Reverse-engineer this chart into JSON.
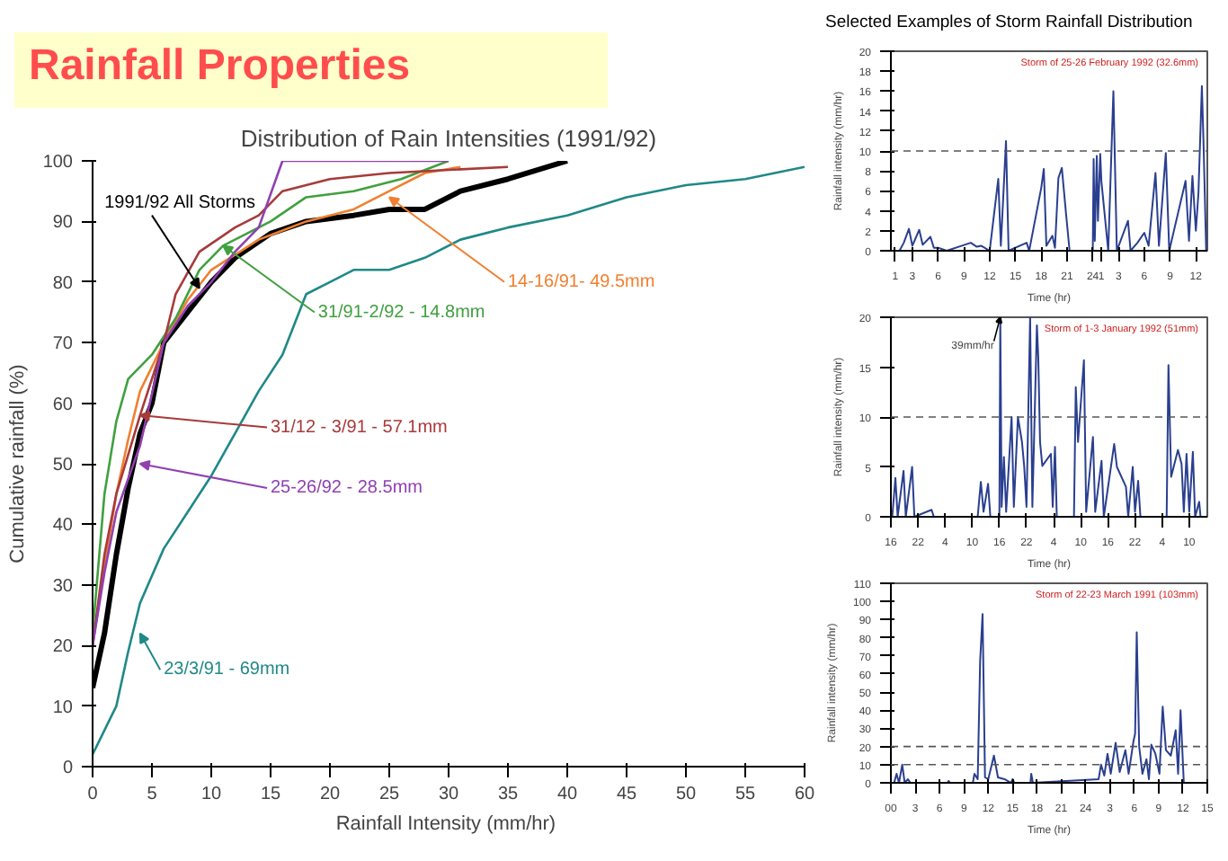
{
  "chart_data": [
    {
      "type": "line",
      "title": "Rainfall Properties",
      "subtitle": "Distribution of Rain Intensities (1991/92)",
      "xlabel": "Rainfall Intensity  (mm/hr)",
      "ylabel": "Cumulative rainfall (%)",
      "xlim": [
        0,
        60
      ],
      "xticks": [
        0,
        5,
        10,
        15,
        20,
        25,
        30,
        35,
        40,
        45,
        50,
        55,
        60
      ],
      "ylim": [
        0,
        100
      ],
      "yticks": [
        0,
        10,
        20,
        30,
        40,
        50,
        60,
        70,
        80,
        90,
        100
      ],
      "series": [
        {
          "color": "#000000",
          "x": [
            0,
            1,
            2,
            3,
            4,
            5,
            6,
            8,
            10,
            12,
            15,
            18,
            22,
            25,
            28,
            31,
            35,
            40
          ],
          "values": [
            13,
            22,
            35,
            46,
            55,
            60,
            70,
            75,
            80,
            84,
            88,
            90,
            91,
            92,
            92,
            95,
            97,
            100
          ]
        },
        {
          "color": "#f08030",
          "x": [
            0,
            1,
            2,
            3,
            4,
            6,
            8,
            10,
            14,
            18,
            22,
            25,
            28,
            31
          ],
          "values": [
            20,
            33,
            45,
            54,
            62,
            70,
            77,
            82,
            87,
            90,
            92,
            95,
            98,
            99
          ]
        },
        {
          "color": "#40a040",
          "x": [
            0,
            1,
            2,
            3,
            5,
            7,
            9,
            11,
            15,
            18,
            22,
            26,
            30
          ],
          "values": [
            22,
            45,
            57,
            64,
            68,
            74,
            82,
            86,
            90,
            94,
            95,
            97,
            100
          ]
        },
        {
          "color": "#a83a3a",
          "x": [
            0,
            1,
            2,
            4,
            6,
            7,
            9,
            12,
            14,
            16,
            20,
            25,
            35
          ],
          "values": [
            20,
            35,
            45,
            58,
            70,
            78,
            85,
            89,
            91,
            95,
            97,
            98,
            99
          ]
        },
        {
          "color": "#9040b0",
          "x": [
            0,
            1,
            2,
            4,
            6,
            8,
            10,
            12,
            14,
            16,
            25,
            30
          ],
          "values": [
            20,
            32,
            42,
            53,
            70,
            76,
            80,
            85,
            89,
            100,
            100,
            100
          ]
        },
        {
          "color": "#208888",
          "x": [
            0,
            2,
            3,
            4,
            6,
            8,
            10,
            12,
            14,
            16,
            18,
            20,
            22,
            25,
            28,
            31,
            35,
            40,
            45,
            50,
            55,
            60
          ],
          "values": [
            2,
            10,
            19,
            27,
            36,
            42,
            48,
            55,
            62,
            68,
            78,
            80,
            82,
            82,
            84,
            87,
            89,
            91,
            94,
            96,
            97,
            99
          ]
        }
      ],
      "annotations": [
        {
          "text": "1991/92 All Storms",
          "x": 9,
          "y": 79
        },
        {
          "text": "14-16/91- 49.5mm",
          "x": 25,
          "y": 94
        },
        {
          "text": "31/91-2/92 - 14.8mm",
          "x": 11,
          "y": 86
        },
        {
          "text": "31/12 - 3/91 - 57.1mm",
          "x": 4,
          "y": 58
        },
        {
          "text": "25-26/92 - 28.5mm",
          "x": 4,
          "y": 50
        },
        {
          "text": "23/3/91 - 69mm",
          "x": 4,
          "y": 22
        }
      ]
    },
    {
      "type": "line",
      "title": "Selected Examples of Storm Rainfall Distribution",
      "xlabel": "Time (hr)",
      "ylabel": "Rainfall intensity (mm/hr)",
      "xlim": [
        "1992-02-25T00:30",
        "1992-02-26T13:20"
      ],
      "xticks": [
        {
          "value": "1992-02-25T01:00",
          "label": "1"
        },
        {
          "value": "1992-02-25T03:00",
          "label": "3"
        },
        {
          "value": "1992-02-25T06:00",
          "label": "6"
        },
        {
          "value": "1992-02-25T09:00",
          "label": "9"
        },
        {
          "value": "1992-02-25T12:00",
          "label": "12"
        },
        {
          "value": "1992-02-25T15:00",
          "label": "15"
        },
        {
          "value": "1992-02-25T18:00",
          "label": "18"
        },
        {
          "value": "1992-02-25T21:00",
          "label": "21"
        },
        {
          "value": "1992-02-26T00:00",
          "label": "24"
        },
        {
          "value": "1992-02-26T01:00",
          "label": "1"
        },
        {
          "value": "1992-02-26T03:00",
          "label": "3"
        },
        {
          "value": "1992-02-26T06:00",
          "label": "6"
        },
        {
          "value": "1992-02-26T09:00",
          "label": "9"
        },
        {
          "value": "1992-02-26T12:00",
          "label": "12"
        }
      ],
      "ylim": [
        0,
        20
      ],
      "yticks": [
        0,
        2,
        4,
        6,
        8,
        10,
        12,
        14,
        16,
        18,
        20
      ],
      "ref_lines": [
        {
          "axis": "y",
          "value": 10,
          "line_style": "dashed"
        }
      ],
      "annotations": [
        "Storm of 25-26 February 1992 (32.6mm)"
      ],
      "series": [
        {
          "color": "#2a3f8f",
          "x": [
            "1992-02-25T01:30",
            "1992-02-25T02:00",
            "1992-02-25T02:36",
            "1992-02-25T03:00",
            "1992-02-25T03:48",
            "1992-02-25T04:12",
            "1992-02-25T05:06",
            "1992-02-25T05:30",
            "1992-02-25T06:00",
            "1992-02-25T07:00",
            "1992-02-25T09:48",
            "1992-02-25T10:30",
            "1992-02-25T11:00",
            "1992-02-25T12:00",
            "1992-02-25T13:00",
            "1992-02-25T13:18",
            "1992-02-25T13:54",
            "1992-02-25T14:12",
            "1992-02-25T16:18",
            "1992-02-25T16:36",
            "1992-02-25T18:00",
            "1992-02-25T18:18",
            "1992-02-25T18:36",
            "1992-02-25T19:18",
            "1992-02-25T19:36",
            "1992-02-25T20:00",
            "1992-02-25T20:24",
            "1992-02-25T20:54",
            "1992-02-25T21:18",
            "1992-02-26T00:00",
            "1992-02-26T00:06",
            "1992-02-26T00:14",
            "1992-02-26T00:28",
            "1992-02-26T00:36",
            "1992-02-26T00:52",
            "1992-02-26T01:00",
            "1992-02-26T01:48",
            "1992-02-26T02:24",
            "1992-02-26T02:48",
            "1992-02-26T04:06",
            "1992-02-26T04:24",
            "1992-02-26T05:12",
            "1992-02-26T06:00",
            "1992-02-26T06:30",
            "1992-02-26T07:18",
            "1992-02-26T07:42",
            "1992-02-26T08:30",
            "1992-02-26T08:54",
            "1992-02-26T10:48",
            "1992-02-26T11:12",
            "1992-02-26T11:36",
            "1992-02-26T12:00",
            "1992-02-26T12:18",
            "1992-02-26T12:42",
            "1992-02-26T12:54",
            "1992-02-26T13:12"
          ],
          "values": [
            0,
            0.8,
            2.2,
            0.5,
            2.1,
            0.6,
            1.4,
            0.3,
            0.3,
            0,
            0.8,
            0.4,
            0.5,
            0,
            7.2,
            0.5,
            11,
            0,
            0.8,
            0,
            6.3,
            8.2,
            0.5,
            1.5,
            0.3,
            7.3,
            8.3,
            3.6,
            0,
            0,
            9.2,
            1,
            9.5,
            3,
            9.7,
            7,
            0,
            16,
            0,
            3,
            0,
            0.8,
            1.8,
            0.5,
            7.8,
            0.5,
            9.8,
            0,
            7,
            1,
            7.5,
            2,
            5.8,
            16.5,
            10.5,
            0
          ]
        }
      ]
    },
    {
      "type": "line",
      "xlabel": "Time (hr)",
      "ylabel": "Rainfall intensity (mm/hr)",
      "xlim": [
        "1992-01-01T16:00",
        "1992-01-04T14:00"
      ],
      "xticks": [
        {
          "value": "1992-01-01T16:00",
          "label": "16"
        },
        {
          "value": "1992-01-01T22:00",
          "label": "22"
        },
        {
          "value": "1992-01-02T04:00",
          "label": "4"
        },
        {
          "value": "1992-01-02T10:00",
          "label": "10"
        },
        {
          "value": "1992-01-02T16:00",
          "label": "16"
        },
        {
          "value": "1992-01-02T22:00",
          "label": "22"
        },
        {
          "value": "1992-01-03T04:00",
          "label": "4"
        },
        {
          "value": "1992-01-03T10:00",
          "label": "10"
        },
        {
          "value": "1992-01-03T16:00",
          "label": "16"
        },
        {
          "value": "1992-01-03T22:00",
          "label": "22"
        },
        {
          "value": "1992-01-04T04:00",
          "label": "4"
        },
        {
          "value": "1992-01-04T10:00",
          "label": "10"
        }
      ],
      "ylim": [
        0,
        20
      ],
      "yticks": [
        0,
        5,
        10,
        15,
        20
      ],
      "ref_lines": [
        {
          "axis": "y",
          "value": 10,
          "line_style": "dashed"
        }
      ],
      "annotations": [
        "Storm of 1-3 January 1992 (51mm)",
        {
          "text": "39mm/hr",
          "x": "1992-01-02T16:12",
          "y": 20
        }
      ],
      "series": [
        {
          "color": "#2a3f8f",
          "x": [
            "1992-01-01T16:18",
            "1992-01-01T17:00",
            "1992-01-01T17:30",
            "1992-01-01T18:48",
            "1992-01-01T19:18",
            "1992-01-01T20:42",
            "1992-01-01T21:12",
            "1992-01-02T01:00",
            "1992-01-02T01:30",
            "1992-01-02T11:12",
            "1992-01-02T11:54",
            "1992-01-02T12:30",
            "1992-01-02T13:30",
            "1992-01-02T14:00",
            "1992-01-02T16:00",
            "1992-01-02T16:12",
            "1992-01-02T16:30",
            "1992-01-02T17:00",
            "1992-01-02T17:30",
            "1992-01-02T18:42",
            "1992-01-02T19:12",
            "1992-01-02T20:06",
            "1992-01-02T21:00",
            "1992-01-02T21:30",
            "1992-01-02T22:00",
            "1992-01-02T22:48",
            "1992-01-02T23:18",
            "1992-01-03T00:18",
            "1992-01-03T00:36",
            "1992-01-03T01:00",
            "1992-01-03T01:30",
            "1992-01-03T03:24",
            "1992-01-03T03:48",
            "1992-01-03T04:18",
            "1992-01-03T04:42",
            "1992-01-03T08:30",
            "1992-01-03T08:54",
            "1992-01-03T09:24",
            "1992-01-03T10:42",
            "1992-01-03T11:12",
            "1992-01-03T12:42",
            "1992-01-03T13:12",
            "1992-01-03T14:36",
            "1992-01-03T15:06",
            "1992-01-03T17:24",
            "1992-01-03T18:00",
            "1992-01-03T20:00",
            "1992-01-03T20:30",
            "1992-01-03T21:30",
            "1992-01-03T22:00",
            "1992-01-03T22:42",
            "1992-01-03T23:12",
            "1992-01-04T05:00",
            "1992-01-04T05:24",
            "1992-01-04T06:00",
            "1992-01-04T07:30",
            "1992-01-04T08:18",
            "1992-01-04T08:48",
            "1992-01-04T09:24",
            "1992-01-04T10:00",
            "1992-01-04T10:48",
            "1992-01-04T11:18",
            "1992-01-04T12:12",
            "1992-01-04T12:30"
          ],
          "values": [
            0,
            3.9,
            0,
            4.6,
            0,
            5,
            0,
            0.7,
            0,
            0,
            3.5,
            0.5,
            3.3,
            0,
            0,
            20,
            1,
            6,
            0.5,
            10,
            1,
            10,
            7.5,
            5,
            1,
            20,
            1,
            19.2,
            16,
            7.5,
            5.1,
            6.3,
            1,
            7,
            0,
            0,
            13,
            7.5,
            15.7,
            0.5,
            8,
            0.5,
            5.6,
            0,
            7.3,
            5,
            3,
            0,
            5,
            0.5,
            3.6,
            0,
            0,
            15.2,
            4,
            6.7,
            5.3,
            0.5,
            6.3,
            0.5,
            6.5,
            0,
            1.5,
            0
          ]
        }
      ]
    },
    {
      "type": "line",
      "xlabel": "Time (hr)",
      "ylabel": "Rainfall intensity (mm/hr)",
      "xlim": [
        "1991-03-22T00:00",
        "1991-03-23T15:00"
      ],
      "xticks": [
        {
          "value": "1991-03-22T00:00",
          "label": "00"
        },
        {
          "value": "1991-03-22T03:00",
          "label": "3"
        },
        {
          "value": "1991-03-22T06:00",
          "label": "6"
        },
        {
          "value": "1991-03-22T09:00",
          "label": "9"
        },
        {
          "value": "1991-03-22T12:00",
          "label": "12"
        },
        {
          "value": "1991-03-22T15:00",
          "label": "15"
        },
        {
          "value": "1991-03-22T18:00",
          "label": "18"
        },
        {
          "value": "1991-03-22T21:00",
          "label": "21"
        },
        {
          "value": "1991-03-23T00:00",
          "label": "24"
        },
        {
          "value": "1991-03-23T03:00",
          "label": "3"
        },
        {
          "value": "1991-03-23T06:00",
          "label": "6"
        },
        {
          "value": "1991-03-23T09:00",
          "label": "9"
        },
        {
          "value": "1991-03-23T12:00",
          "label": "12"
        },
        {
          "value": "1991-03-23T15:00",
          "label": "15"
        }
      ],
      "ylim": [
        0,
        110
      ],
      "yticks": [
        0,
        10,
        20,
        30,
        40,
        50,
        60,
        70,
        80,
        90,
        100,
        110
      ],
      "ref_lines": [
        {
          "axis": "y",
          "value": 10,
          "line_style": "dashed"
        },
        {
          "axis": "y",
          "value": 20,
          "line_style": "dashed"
        }
      ],
      "annotations": [
        "Storm of 22-23 March 1991 (103mm)"
      ],
      "series": [
        {
          "color": "#2a3f8f",
          "x": [
            "1991-03-22T00:24",
            "1991-03-22T00:42",
            "1991-03-22T01:00",
            "1991-03-22T01:24",
            "1991-03-22T01:42",
            "1991-03-22T02:06",
            "1991-03-22T02:24",
            "1991-03-22T07:00",
            "1991-03-22T07:06",
            "1991-03-22T07:18",
            "1991-03-22T10:06",
            "1991-03-22T10:18",
            "1991-03-22T10:42",
            "1991-03-22T11:00",
            "1991-03-22T11:18",
            "1991-03-22T11:36",
            "1991-03-22T12:00",
            "1991-03-22T12:42",
            "1991-03-22T13:12",
            "1991-03-22T14:00",
            "1991-03-22T14:48",
            "1991-03-22T15:00",
            "1991-03-22T15:12",
            "1991-03-22T17:12",
            "1991-03-22T17:18",
            "1991-03-22T17:30",
            "1991-03-23T01:36",
            "1991-03-23T01:54",
            "1991-03-23T02:18",
            "1991-03-23T02:42",
            "1991-03-23T03:06",
            "1991-03-23T03:42",
            "1991-03-23T04:12",
            "1991-03-23T04:54",
            "1991-03-23T05:18",
            "1991-03-23T05:54",
            "1991-03-23T06:06",
            "1991-03-23T06:18",
            "1991-03-23T06:36",
            "1991-03-23T07:00",
            "1991-03-23T07:30",
            "1991-03-23T07:48",
            "1991-03-23T08:06",
            "1991-03-23T08:36",
            "1991-03-23T09:06",
            "1991-03-23T09:30",
            "1991-03-23T09:54",
            "1991-03-23T10:30",
            "1991-03-23T11:06",
            "1991-03-23T11:24",
            "1991-03-23T11:42",
            "1991-03-23T12:06"
          ],
          "values": [
            0,
            5,
            0,
            10,
            0,
            2,
            0,
            0,
            1,
            0,
            0,
            5,
            2,
            67,
            93,
            3,
            2,
            15,
            3,
            2,
            0,
            2,
            0,
            0,
            5,
            0,
            2,
            10,
            4,
            16,
            5,
            22,
            6,
            18,
            5,
            23,
            27,
            83,
            20,
            5,
            13,
            2,
            21,
            16,
            5,
            42,
            18,
            15,
            29,
            5,
            40,
            0
          ]
        }
      ]
    }
  ]
}
